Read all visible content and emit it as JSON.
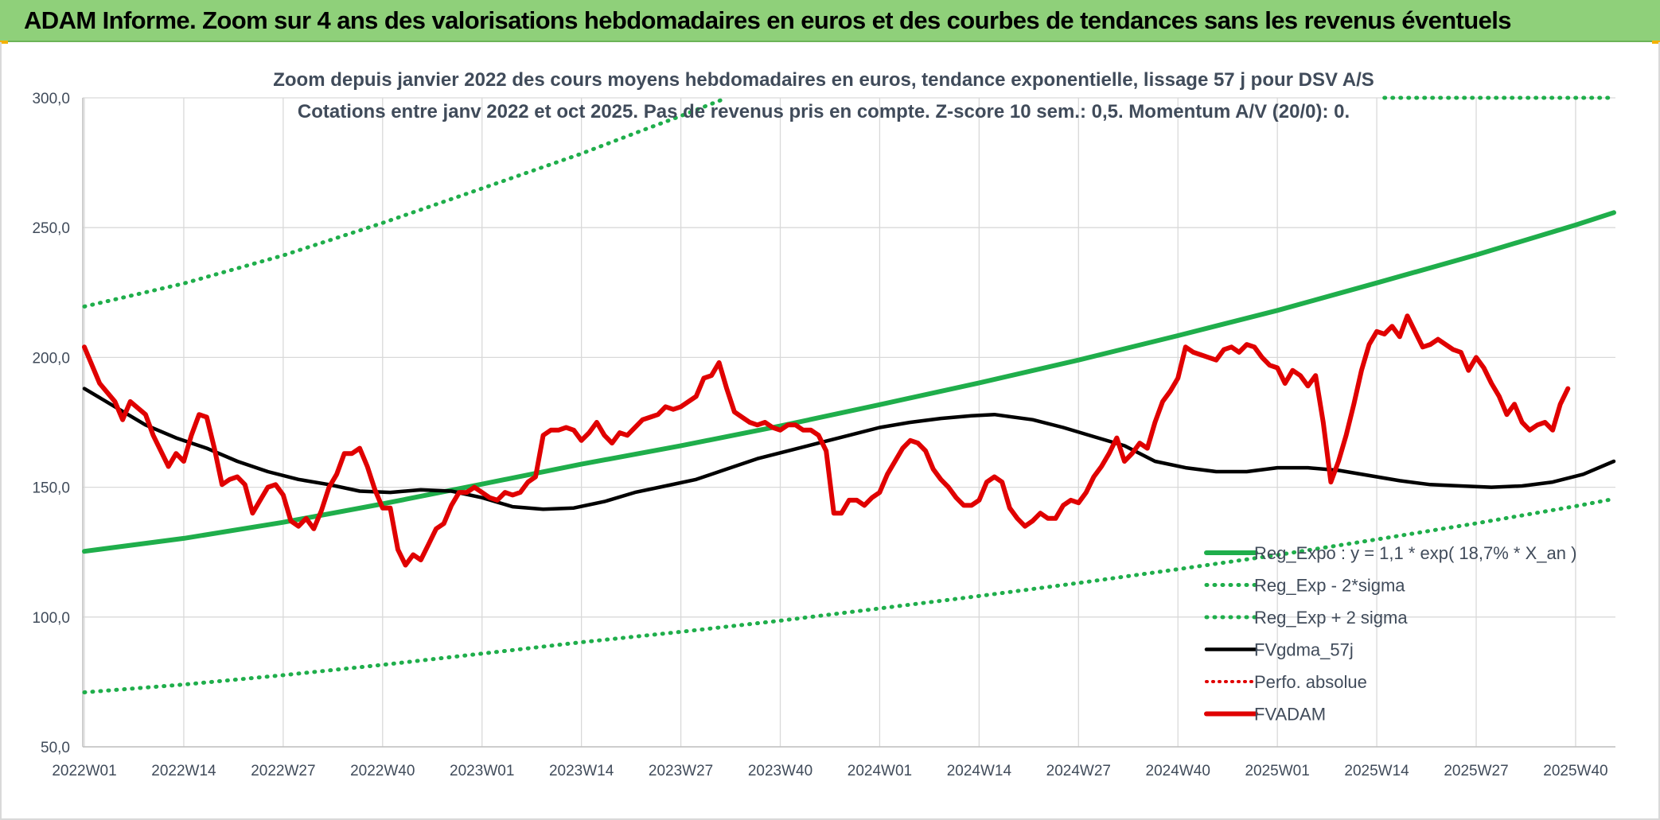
{
  "banner": {
    "text": "ADAM Informe. Zoom sur 4 ans des valorisations hebdomadaires en euros et des courbes de tendances sans les revenus éventuels"
  },
  "colors": {
    "banner_bg": "#8fd07a",
    "reg_expo": "#1fae4b",
    "sigma_bands": "#1fae4b",
    "fvgdma": "#000000",
    "perfo": "#e00000",
    "fvadam": "#e00000",
    "grid": "#d9d9d9"
  },
  "chart_data": {
    "type": "line",
    "title": "Zoom depuis janvier 2022 des cours moyens hebdomadaires en euros, tendance exponentielle, lissage 57 j pour DSV A/S",
    "subtitle": "Cotations entre janv 2022 et oct 2025. Pas de revenus pris en compte. Z-score 10 sem.: 0,5. Momentum A/V (20/0): 0.",
    "ylim": [
      50,
      300
    ],
    "yticks": [
      "50,0",
      "100,0",
      "150,0",
      "200,0",
      "250,0",
      "300,0"
    ],
    "ytick_values": [
      50,
      100,
      150,
      200,
      250,
      300
    ],
    "xticks": [
      "2022W01",
      "2022W14",
      "2022W27",
      "2022W40",
      "2023W01",
      "2023W14",
      "2023W27",
      "2023W40",
      "2024W01",
      "2024W14",
      "2024W27",
      "2024W40",
      "2025W01",
      "2025W14",
      "2025W27",
      "2025W40"
    ],
    "xtick_index": [
      0,
      13,
      26,
      39,
      52,
      65,
      78,
      91,
      104,
      117,
      130,
      143,
      156,
      169,
      182,
      195
    ],
    "n_weeks": 201,
    "grid": "vertical and horizontal",
    "legend_position": "bottom-right",
    "series": [
      {
        "name": "Reg_Expo : y = 1,1 * exp( 18,7% *  X_an )",
        "key": "reg_expo",
        "style": "solid-thick",
        "points": [
          [
            0,
            125.3
          ],
          [
            13,
            130.3
          ],
          [
            26,
            136.5
          ],
          [
            39,
            143.6
          ],
          [
            52,
            151.2
          ],
          [
            65,
            158.9
          ],
          [
            78,
            166.0
          ],
          [
            91,
            173.6
          ],
          [
            104,
            181.8
          ],
          [
            117,
            190.2
          ],
          [
            130,
            199.0
          ],
          [
            143,
            208.4
          ],
          [
            156,
            218.1
          ],
          [
            169,
            228.7
          ],
          [
            182,
            239.5
          ],
          [
            195,
            251.0
          ],
          [
            200,
            255.8
          ]
        ]
      },
      {
        "name": "Reg_Exp - 2*sigma",
        "key": "reg_minus",
        "style": "dotted",
        "points": [
          [
            0,
            71.0
          ],
          [
            13,
            74.0
          ],
          [
            26,
            77.6
          ],
          [
            39,
            81.6
          ],
          [
            52,
            85.9
          ],
          [
            65,
            90.3
          ],
          [
            78,
            94.3
          ],
          [
            91,
            98.6
          ],
          [
            104,
            103.3
          ],
          [
            117,
            108.1
          ],
          [
            130,
            113.1
          ],
          [
            143,
            118.4
          ],
          [
            156,
            123.9
          ],
          [
            169,
            129.9
          ],
          [
            182,
            136.1
          ],
          [
            195,
            142.7
          ],
          [
            200,
            145.5
          ]
        ]
      },
      {
        "name": "Reg_Exp + 2 sigma",
        "key": "reg_plus",
        "style": "dotted",
        "points": [
          [
            0,
            219.6
          ],
          [
            13,
            228.5
          ],
          [
            26,
            239.3
          ],
          [
            39,
            251.8
          ],
          [
            52,
            265.1
          ],
          [
            65,
            278.5
          ],
          [
            73,
            287.5
          ],
          [
            78,
            293.0
          ],
          [
            84,
            300.0
          ]
        ]
      },
      {
        "name": "Reg_Exp + 2 sigma (cap)",
        "key": "reg_plus_cap",
        "style": "dotted",
        "legend": false,
        "points": [
          [
            170,
            300.0
          ],
          [
            200,
            300.0
          ]
        ]
      },
      {
        "name": "FVgdma_57j",
        "key": "fvgdma",
        "style": "solid",
        "points": [
          [
            0,
            188
          ],
          [
            4,
            181
          ],
          [
            8,
            174
          ],
          [
            12,
            169
          ],
          [
            16,
            165
          ],
          [
            20,
            160
          ],
          [
            24,
            156
          ],
          [
            28,
            153
          ],
          [
            32,
            151
          ],
          [
            36,
            148.5
          ],
          [
            40,
            148
          ],
          [
            44,
            149
          ],
          [
            48,
            148.5
          ],
          [
            52,
            146
          ],
          [
            56,
            142.5
          ],
          [
            60,
            141.5
          ],
          [
            64,
            142
          ],
          [
            68,
            144.5
          ],
          [
            72,
            148
          ],
          [
            76,
            150.5
          ],
          [
            80,
            153
          ],
          [
            84,
            157
          ],
          [
            88,
            161
          ],
          [
            92,
            164
          ],
          [
            96,
            167
          ],
          [
            100,
            170
          ],
          [
            104,
            173
          ],
          [
            108,
            175
          ],
          [
            112,
            176.5
          ],
          [
            116,
            177.5
          ],
          [
            119,
            178
          ],
          [
            124,
            176
          ],
          [
            128,
            173
          ],
          [
            132,
            169.5
          ],
          [
            136,
            166
          ],
          [
            140,
            160
          ],
          [
            144,
            157.5
          ],
          [
            148,
            156
          ],
          [
            152,
            156
          ],
          [
            156,
            157.5
          ],
          [
            160,
            157.5
          ],
          [
            164,
            156.5
          ],
          [
            168,
            154.5
          ],
          [
            172,
            152.5
          ],
          [
            176,
            151
          ],
          [
            180,
            150.5
          ],
          [
            184,
            150
          ],
          [
            188,
            150.5
          ],
          [
            192,
            152
          ],
          [
            196,
            155
          ],
          [
            200,
            160
          ]
        ]
      },
      {
        "name": "Perfo. absolue",
        "key": "perfo",
        "style": "dotted-red",
        "points": []
      },
      {
        "name": "FVADAM",
        "key": "fvadam",
        "style": "solid-thick",
        "points": [
          [
            0,
            204
          ],
          [
            2,
            190
          ],
          [
            4,
            183
          ],
          [
            5,
            176
          ],
          [
            6,
            183
          ],
          [
            8,
            178
          ],
          [
            9,
            170
          ],
          [
            11,
            158
          ],
          [
            12,
            163
          ],
          [
            13,
            160
          ],
          [
            14,
            170
          ],
          [
            15,
            178
          ],
          [
            16,
            177
          ],
          [
            17,
            165
          ],
          [
            18,
            151
          ],
          [
            19,
            153
          ],
          [
            20,
            154
          ],
          [
            21,
            151
          ],
          [
            22,
            140
          ],
          [
            23,
            145
          ],
          [
            24,
            150
          ],
          [
            25,
            151
          ],
          [
            26,
            147
          ],
          [
            27,
            137
          ],
          [
            28,
            135
          ],
          [
            29,
            138
          ],
          [
            30,
            134
          ],
          [
            31,
            141
          ],
          [
            32,
            150
          ],
          [
            33,
            155
          ],
          [
            34,
            163
          ],
          [
            35,
            163
          ],
          [
            36,
            165
          ],
          [
            37,
            158
          ],
          [
            38,
            149
          ],
          [
            39,
            142
          ],
          [
            40,
            142
          ],
          [
            41,
            126
          ],
          [
            42,
            120
          ],
          [
            43,
            124
          ],
          [
            44,
            122
          ],
          [
            45,
            128
          ],
          [
            46,
            134
          ],
          [
            47,
            136
          ],
          [
            48,
            143
          ],
          [
            49,
            148
          ],
          [
            50,
            148
          ],
          [
            51,
            150
          ],
          [
            52,
            148
          ],
          [
            53,
            146
          ],
          [
            54,
            145
          ],
          [
            55,
            148
          ],
          [
            56,
            147
          ],
          [
            57,
            148
          ],
          [
            58,
            152
          ],
          [
            59,
            154
          ],
          [
            60,
            170
          ],
          [
            61,
            172
          ],
          [
            62,
            172
          ],
          [
            63,
            173
          ],
          [
            64,
            172
          ],
          [
            65,
            168
          ],
          [
            66,
            171
          ],
          [
            67,
            175
          ],
          [
            68,
            170
          ],
          [
            69,
            167
          ],
          [
            70,
            171
          ],
          [
            71,
            170
          ],
          [
            72,
            173
          ],
          [
            73,
            176
          ],
          [
            74,
            177
          ],
          [
            75,
            178
          ],
          [
            76,
            181
          ],
          [
            77,
            180
          ],
          [
            78,
            181
          ],
          [
            79,
            183
          ],
          [
            80,
            185
          ],
          [
            81,
            192
          ],
          [
            82,
            193
          ],
          [
            83,
            198
          ],
          [
            84,
            188
          ],
          [
            85,
            179
          ],
          [
            86,
            177
          ],
          [
            87,
            175
          ],
          [
            88,
            174
          ],
          [
            89,
            175
          ],
          [
            90,
            173
          ],
          [
            91,
            172
          ],
          [
            92,
            174
          ],
          [
            93,
            174
          ],
          [
            94,
            172
          ],
          [
            95,
            172
          ],
          [
            96,
            170
          ],
          [
            97,
            164
          ],
          [
            98,
            140
          ],
          [
            99,
            140
          ],
          [
            100,
            145
          ],
          [
            101,
            145
          ],
          [
            102,
            143
          ],
          [
            103,
            146
          ],
          [
            104,
            148
          ],
          [
            105,
            155
          ],
          [
            106,
            160
          ],
          [
            107,
            165
          ],
          [
            108,
            168
          ],
          [
            109,
            167
          ],
          [
            110,
            164
          ],
          [
            111,
            157
          ],
          [
            112,
            153
          ],
          [
            113,
            150
          ],
          [
            114,
            146
          ],
          [
            115,
            143
          ],
          [
            116,
            143
          ],
          [
            117,
            145
          ],
          [
            118,
            152
          ],
          [
            119,
            154
          ],
          [
            120,
            152
          ],
          [
            121,
            142
          ],
          [
            122,
            138
          ],
          [
            123,
            135
          ],
          [
            124,
            137
          ],
          [
            125,
            140
          ],
          [
            126,
            138
          ],
          [
            127,
            138
          ],
          [
            128,
            143
          ],
          [
            129,
            145
          ],
          [
            130,
            144
          ],
          [
            131,
            148
          ],
          [
            132,
            154
          ],
          [
            133,
            158
          ],
          [
            134,
            163
          ],
          [
            135,
            169
          ],
          [
            136,
            160
          ],
          [
            137,
            163
          ],
          [
            138,
            167
          ],
          [
            139,
            165
          ],
          [
            140,
            175
          ],
          [
            141,
            183
          ],
          [
            142,
            187
          ],
          [
            143,
            192
          ],
          [
            144,
            204
          ],
          [
            145,
            202
          ],
          [
            146,
            201
          ],
          [
            147,
            200
          ],
          [
            148,
            199
          ],
          [
            149,
            203
          ],
          [
            150,
            204
          ],
          [
            151,
            202
          ],
          [
            152,
            205
          ],
          [
            153,
            204
          ],
          [
            154,
            200
          ],
          [
            155,
            197
          ],
          [
            156,
            196
          ],
          [
            157,
            190
          ],
          [
            158,
            195
          ],
          [
            159,
            193
          ],
          [
            160,
            189
          ],
          [
            161,
            193
          ],
          [
            162,
            175
          ],
          [
            163,
            152
          ],
          [
            164,
            160
          ],
          [
            165,
            170
          ],
          [
            166,
            182
          ],
          [
            167,
            195
          ],
          [
            168,
            205
          ],
          [
            169,
            210
          ],
          [
            170,
            209
          ],
          [
            171,
            212
          ],
          [
            172,
            208
          ],
          [
            173,
            216
          ],
          [
            174,
            210
          ],
          [
            175,
            204
          ],
          [
            176,
            205
          ],
          [
            177,
            207
          ],
          [
            178,
            205
          ],
          [
            179,
            203
          ],
          [
            180,
            202
          ],
          [
            181,
            195
          ],
          [
            182,
            200
          ],
          [
            183,
            196
          ],
          [
            184,
            190
          ],
          [
            185,
            185
          ],
          [
            186,
            178
          ],
          [
            187,
            182
          ],
          [
            188,
            175
          ],
          [
            189,
            172
          ],
          [
            190,
            174
          ],
          [
            191,
            175
          ],
          [
            192,
            172
          ],
          [
            193,
            182
          ],
          [
            194,
            188
          ]
        ]
      }
    ]
  }
}
